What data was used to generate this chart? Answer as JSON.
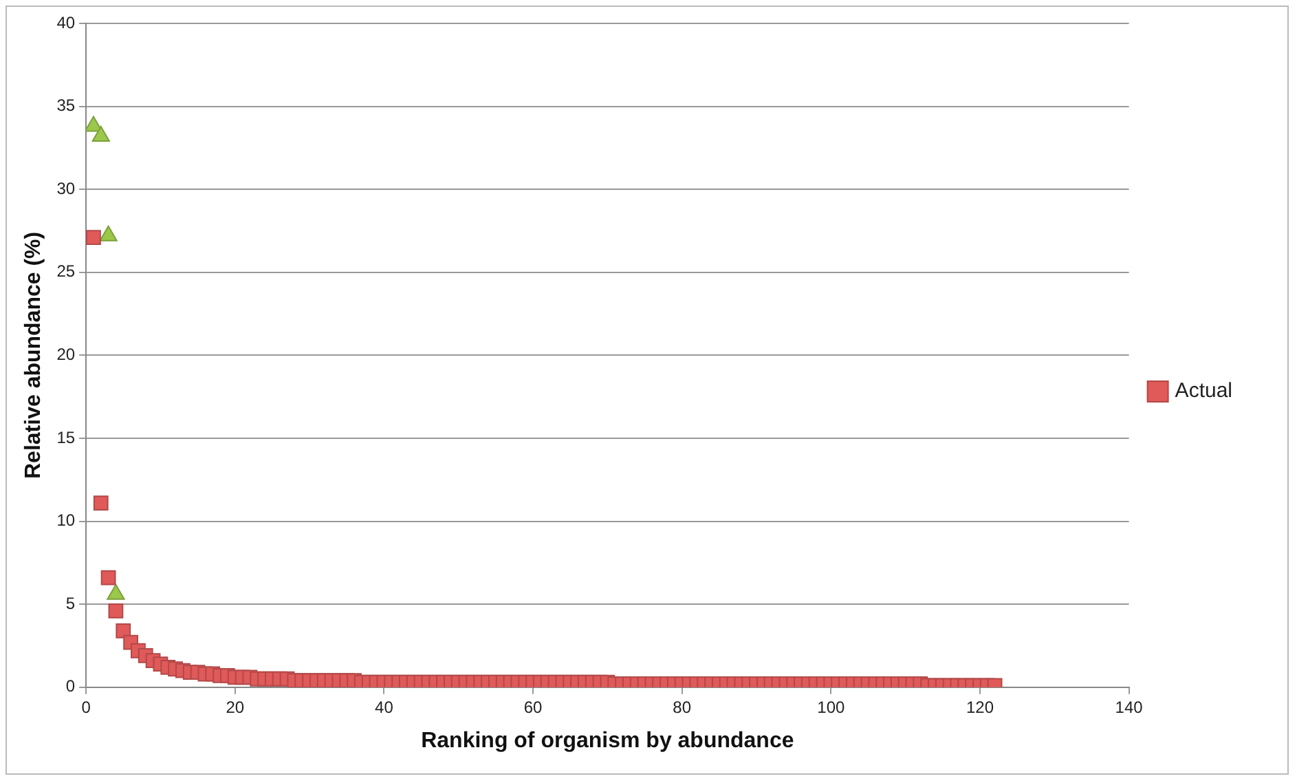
{
  "chart_data": {
    "type": "scatter",
    "xlabel": "Ranking of organism by abundance",
    "ylabel": "Relative abundance (%)",
    "x": [
      1,
      2,
      3,
      4,
      5,
      6,
      7,
      8,
      9,
      10,
      11,
      12,
      13,
      14,
      15,
      16,
      17,
      18,
      19,
      20,
      21,
      22,
      23,
      24,
      25,
      26,
      27,
      28,
      29,
      30,
      31,
      32,
      33,
      34,
      35,
      36,
      37,
      38,
      39,
      40,
      41,
      42,
      43,
      44,
      45,
      46,
      47,
      48,
      49,
      50,
      51,
      52,
      53,
      54,
      55,
      56,
      57,
      58,
      59,
      60,
      61,
      62,
      63,
      64,
      65,
      66,
      67,
      68,
      69,
      70,
      71,
      72,
      73,
      74,
      75,
      76,
      77,
      78,
      79,
      80,
      81,
      82,
      83,
      84,
      85,
      86,
      87,
      88,
      89,
      90,
      91,
      92,
      93,
      94,
      95,
      96,
      97,
      98,
      99,
      100,
      101,
      102,
      103,
      104,
      105,
      106,
      107,
      108,
      109,
      110,
      111,
      112,
      113,
      114,
      115,
      116,
      117,
      118,
      119,
      120,
      121,
      122
    ],
    "series": [
      {
        "name": "Actual",
        "color": "#e05a5a",
        "marker": "square",
        "values": [
          27.1,
          11.1,
          6.6,
          4.6,
          3.4,
          2.7,
          2.2,
          1.9,
          1.6,
          1.4,
          1.2,
          1.1,
          1.0,
          0.9,
          0.9,
          0.8,
          0.8,
          0.7,
          0.7,
          0.6,
          0.6,
          0.6,
          0.5,
          0.5,
          0.5,
          0.5,
          0.5,
          0.4,
          0.4,
          0.4,
          0.4,
          0.4,
          0.4,
          0.4,
          0.4,
          0.4,
          0.3,
          0.3,
          0.3,
          0.3,
          0.3,
          0.3,
          0.3,
          0.3,
          0.3,
          0.3,
          0.3,
          0.3,
          0.3,
          0.3,
          0.3,
          0.3,
          0.3,
          0.3,
          0.3,
          0.3,
          0.3,
          0.3,
          0.3,
          0.3,
          0.3,
          0.3,
          0.3,
          0.3,
          0.3,
          0.3,
          0.3,
          0.3,
          0.3,
          0.3,
          0.2,
          0.2,
          0.2,
          0.2,
          0.2,
          0.2,
          0.2,
          0.2,
          0.2,
          0.2,
          0.2,
          0.2,
          0.2,
          0.2,
          0.2,
          0.2,
          0.2,
          0.2,
          0.2,
          0.2,
          0.2,
          0.2,
          0.2,
          0.2,
          0.2,
          0.2,
          0.2,
          0.2,
          0.2,
          0.2,
          0.2,
          0.2,
          0.2,
          0.2,
          0.2,
          0.2,
          0.2,
          0.2,
          0.2,
          0.2,
          0.2,
          0.2,
          0.1,
          0.1,
          0.1,
          0.1,
          0.1,
          0.1,
          0.1,
          0.1,
          0.1,
          0.1
        ]
      },
      {
        "color": "#9bc84a",
        "marker": "triangle",
        "x": [
          1,
          2,
          3,
          4
        ],
        "values": [
          33.8,
          33.2,
          27.2,
          5.6
        ]
      }
    ],
    "xlim": [
      0,
      140
    ],
    "xticks": [
      0,
      20,
      40,
      60,
      80,
      100,
      120,
      140
    ],
    "ylim": [
      0,
      40
    ],
    "yticks": [
      0,
      5,
      10,
      15,
      20,
      25,
      30,
      35,
      40
    ],
    "grid": "y",
    "legend": "right"
  }
}
